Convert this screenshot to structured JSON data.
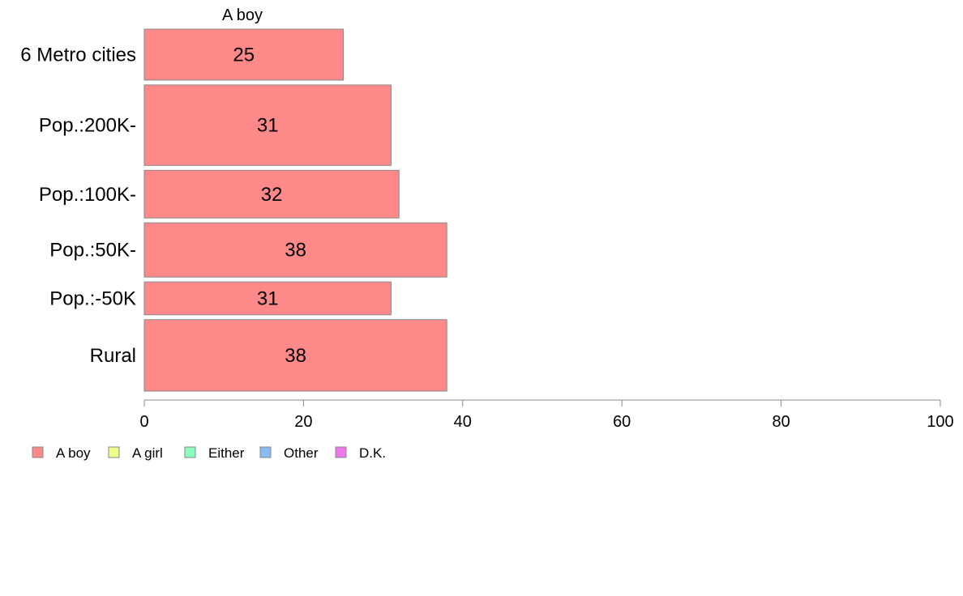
{
  "chart_data": {
    "type": "bar",
    "orientation": "horizontal",
    "series_title": "A boy",
    "categories": [
      "6 Metro cities",
      "Pop.:200K-",
      "Pop.:100K-",
      "Pop.:50K-",
      "Pop.:-50K",
      "Rural"
    ],
    "series": [
      {
        "name": "A boy",
        "values": [
          25,
          31,
          32,
          38,
          31,
          38
        ]
      }
    ],
    "xlim": [
      0,
      100
    ],
    "x_ticks": [
      0,
      20,
      40,
      60,
      80,
      100
    ],
    "bar_color": "#FF8888",
    "bar_edge_color": "#888888",
    "axis_color": "#888888",
    "grid": false,
    "legend_position": "bottom-left",
    "legend": [
      {
        "name": "A boy",
        "color": "#FF8888"
      },
      {
        "name": "A girl",
        "color": "#EEFF88"
      },
      {
        "name": "Either",
        "color": "#88FFBB"
      },
      {
        "name": "Other",
        "color": "#88BBEE"
      },
      {
        "name": "D.K.",
        "color": "#EE77EE"
      }
    ]
  }
}
